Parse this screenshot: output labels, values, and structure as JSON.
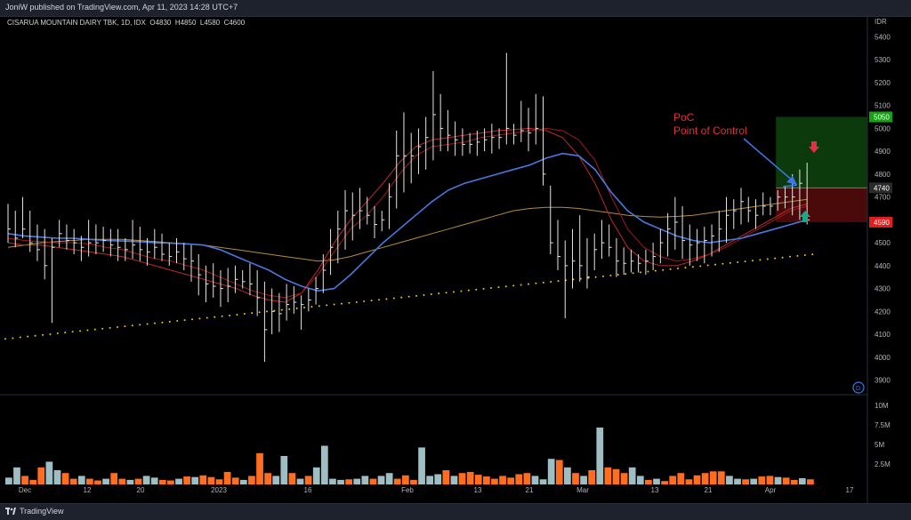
{
  "header": {
    "published": "JoniW published on TradingView.com, Apr 11, 2023 14:28 UTC+7"
  },
  "legend": {
    "symbol": "CISARUA MOUNTAIN DAIRY TBK, 1D, IDX",
    "o_label": "O",
    "o": "4830",
    "h_label": "H",
    "h": "4850",
    "l_label": "L",
    "l": "4580",
    "c_label": "C",
    "c": "4600"
  },
  "footer": {
    "brand": "TradingView"
  },
  "annotation": {
    "line1": "PoC",
    "line2": "Point of Control"
  },
  "colors": {
    "background": "#000000",
    "candle": "#e6e6e6",
    "ma_blue": "#4a78e0",
    "ma_red": "#9e1a1a",
    "ma_red2": "#c0282a",
    "ma_gold": "#b58c3b",
    "poc_dots": "#f0c419",
    "vol_up": "#9fbec4",
    "vol_down": "#ff6d1f",
    "target_zone": "#0c3a0c",
    "stop_zone": "#4a0a0a",
    "label_target": "#15a015",
    "label_entry": "#2b2b2b",
    "label_stop": "#e01e1e",
    "arrow_down": "#e0304a",
    "arrow_up": "#1aa88a",
    "annot_text": "#e0303a",
    "annot_arrow": "#3a78e8"
  },
  "chart_data": {
    "type": "ohlc",
    "currency": "IDR",
    "ylim": [
      3840,
      5460
    ],
    "y_ticks": [
      "5400",
      "5300",
      "5200",
      "5100",
      "5000",
      "4900",
      "4800",
      "4700",
      "4600",
      "4500",
      "4400",
      "4300",
      "4200",
      "4100",
      "4000",
      "3900"
    ],
    "x_ticks": [
      "Dec",
      "12",
      "20",
      "2023",
      "16",
      "Feb",
      "13",
      "21",
      "Mar",
      "13",
      "21",
      "Apr",
      "17"
    ],
    "price_labels": {
      "target": "5050",
      "entry": "4740",
      "stop": "4590"
    },
    "volume_ticks": [
      "10M",
      "7.5M",
      "5M",
      "2.5M"
    ],
    "bars": [
      {
        "h": 4670,
        "l": 4500,
        "c": 4560
      },
      {
        "h": 4640,
        "l": 4480,
        "c": 4520
      },
      {
        "h": 4700,
        "l": 4520,
        "c": 4560
      },
      {
        "h": 4640,
        "l": 4460,
        "c": 4500
      },
      {
        "h": 4580,
        "l": 4420,
        "c": 4470
      },
      {
        "h": 4560,
        "l": 4340,
        "c": 4400
      },
      {
        "h": 4520,
        "l": 4150,
        "c": 4480
      },
      {
        "h": 4600,
        "l": 4480,
        "c": 4540
      },
      {
        "h": 4580,
        "l": 4470,
        "c": 4510
      },
      {
        "h": 4560,
        "l": 4450,
        "c": 4500
      },
      {
        "h": 4530,
        "l": 4420,
        "c": 4480
      },
      {
        "h": 4600,
        "l": 4440,
        "c": 4500
      },
      {
        "h": 4580,
        "l": 4450,
        "c": 4500
      },
      {
        "h": 4570,
        "l": 4460,
        "c": 4510
      },
      {
        "h": 4560,
        "l": 4440,
        "c": 4490
      },
      {
        "h": 4560,
        "l": 4420,
        "c": 4480
      },
      {
        "h": 4520,
        "l": 4420,
        "c": 4470
      },
      {
        "h": 4600,
        "l": 4430,
        "c": 4490
      },
      {
        "h": 4570,
        "l": 4420,
        "c": 4470
      },
      {
        "h": 4520,
        "l": 4400,
        "c": 4460
      },
      {
        "h": 4560,
        "l": 4430,
        "c": 4480
      },
      {
        "h": 4540,
        "l": 4420,
        "c": 4450
      },
      {
        "h": 4500,
        "l": 4400,
        "c": 4440
      },
      {
        "h": 4520,
        "l": 4410,
        "c": 4460
      },
      {
        "h": 4500,
        "l": 4380,
        "c": 4430
      },
      {
        "h": 4490,
        "l": 4330,
        "c": 4420
      },
      {
        "h": 4450,
        "l": 4270,
        "c": 4360
      },
      {
        "h": 4400,
        "l": 4240,
        "c": 4320
      },
      {
        "h": 4410,
        "l": 4260,
        "c": 4310
      },
      {
        "h": 4380,
        "l": 4220,
        "c": 4300
      },
      {
        "h": 4390,
        "l": 4240,
        "c": 4310
      },
      {
        "h": 4400,
        "l": 4280,
        "c": 4340
      },
      {
        "h": 4380,
        "l": 4300,
        "c": 4330
      },
      {
        "h": 4410,
        "l": 4270,
        "c": 4320
      },
      {
        "h": 4380,
        "l": 4180,
        "c": 4260
      },
      {
        "h": 4330,
        "l": 3980,
        "c": 4120
      },
      {
        "h": 4300,
        "l": 4100,
        "c": 4200
      },
      {
        "h": 4280,
        "l": 4110,
        "c": 4190
      },
      {
        "h": 4320,
        "l": 4160,
        "c": 4230
      },
      {
        "h": 4310,
        "l": 4190,
        "c": 4240
      },
      {
        "h": 4270,
        "l": 4120,
        "c": 4230
      },
      {
        "h": 4300,
        "l": 4200,
        "c": 4250
      },
      {
        "h": 4350,
        "l": 4230,
        "c": 4300
      },
      {
        "h": 4450,
        "l": 4280,
        "c": 4380
      },
      {
        "h": 4560,
        "l": 4360,
        "c": 4480
      },
      {
        "h": 4640,
        "l": 4410,
        "c": 4560
      },
      {
        "h": 4730,
        "l": 4470,
        "c": 4640
      },
      {
        "h": 4720,
        "l": 4510,
        "c": 4620
      },
      {
        "h": 4740,
        "l": 4560,
        "c": 4640
      },
      {
        "h": 4700,
        "l": 4580,
        "c": 4620
      },
      {
        "h": 4660,
        "l": 4520,
        "c": 4580
      },
      {
        "h": 4640,
        "l": 4550,
        "c": 4600
      },
      {
        "h": 4760,
        "l": 4560,
        "c": 4700
      },
      {
        "h": 4990,
        "l": 4650,
        "c": 4880
      },
      {
        "h": 5070,
        "l": 4720,
        "c": 4880
      },
      {
        "h": 4980,
        "l": 4760,
        "c": 4880
      },
      {
        "h": 5000,
        "l": 4800,
        "c": 4920
      },
      {
        "h": 5050,
        "l": 4820,
        "c": 4960
      },
      {
        "h": 5250,
        "l": 4860,
        "c": 5060
      },
      {
        "h": 5150,
        "l": 4900,
        "c": 5000
      },
      {
        "h": 5080,
        "l": 4900,
        "c": 4970
      },
      {
        "h": 5030,
        "l": 4880,
        "c": 4950
      },
      {
        "h": 5000,
        "l": 4880,
        "c": 4930
      },
      {
        "h": 4980,
        "l": 4890,
        "c": 4930
      },
      {
        "h": 4990,
        "l": 4880,
        "c": 4940
      },
      {
        "h": 5000,
        "l": 4900,
        "c": 4950
      },
      {
        "h": 5020,
        "l": 4890,
        "c": 4960
      },
      {
        "h": 5000,
        "l": 4910,
        "c": 4960
      },
      {
        "h": 5330,
        "l": 4930,
        "c": 5000
      },
      {
        "h": 5020,
        "l": 4930,
        "c": 4970
      },
      {
        "h": 5120,
        "l": 4940,
        "c": 4990
      },
      {
        "h": 5090,
        "l": 4900,
        "c": 4980
      },
      {
        "h": 5150,
        "l": 4930,
        "c": 5000
      },
      {
        "h": 5140,
        "l": 4750,
        "c": 4800
      },
      {
        "h": 4750,
        "l": 4450,
        "c": 4500
      },
      {
        "h": 4600,
        "l": 4380,
        "c": 4440
      },
      {
        "h": 4510,
        "l": 4170,
        "c": 4400
      },
      {
        "h": 4560,
        "l": 4300,
        "c": 4420
      },
      {
        "h": 4620,
        "l": 4330,
        "c": 4400
      },
      {
        "h": 4520,
        "l": 4300,
        "c": 4350
      },
      {
        "h": 4540,
        "l": 4380,
        "c": 4470
      },
      {
        "h": 4600,
        "l": 4430,
        "c": 4500
      },
      {
        "h": 4580,
        "l": 4440,
        "c": 4480
      },
      {
        "h": 4520,
        "l": 4350,
        "c": 4420
      },
      {
        "h": 4480,
        "l": 4360,
        "c": 4410
      },
      {
        "h": 4470,
        "l": 4370,
        "c": 4420
      },
      {
        "h": 4450,
        "l": 4370,
        "c": 4410
      },
      {
        "h": 4470,
        "l": 4360,
        "c": 4420
      },
      {
        "h": 4500,
        "l": 4380,
        "c": 4440
      },
      {
        "h": 4560,
        "l": 4410,
        "c": 4500
      },
      {
        "h": 4630,
        "l": 4440,
        "c": 4560
      },
      {
        "h": 4700,
        "l": 4470,
        "c": 4590
      },
      {
        "h": 4660,
        "l": 4430,
        "c": 4510
      },
      {
        "h": 4580,
        "l": 4400,
        "c": 4490
      },
      {
        "h": 4560,
        "l": 4420,
        "c": 4500
      },
      {
        "h": 4570,
        "l": 4410,
        "c": 4510
      },
      {
        "h": 4580,
        "l": 4440,
        "c": 4530
      },
      {
        "h": 4640,
        "l": 4460,
        "c": 4560
      },
      {
        "h": 4700,
        "l": 4500,
        "c": 4620
      },
      {
        "h": 4690,
        "l": 4560,
        "c": 4640
      },
      {
        "h": 4740,
        "l": 4580,
        "c": 4680
      },
      {
        "h": 4700,
        "l": 4590,
        "c": 4640
      },
      {
        "h": 4690,
        "l": 4560,
        "c": 4620
      },
      {
        "h": 4720,
        "l": 4620,
        "c": 4660
      },
      {
        "h": 4700,
        "l": 4620,
        "c": 4660
      },
      {
        "h": 4730,
        "l": 4640,
        "c": 4700
      },
      {
        "h": 4750,
        "l": 4650,
        "c": 4700
      },
      {
        "h": 4800,
        "l": 4620,
        "c": 4700
      },
      {
        "h": 4820,
        "l": 4600,
        "c": 4760
      },
      {
        "h": 4850,
        "l": 4580,
        "c": 4600
      }
    ],
    "ma_blue": [
      4540,
      4530,
      4525,
      4520,
      4520,
      4515,
      4510,
      4508,
      4505,
      4500,
      4498,
      4495,
      4490,
      4470,
      4440,
      4410,
      4380,
      4340,
      4310,
      4290,
      4300,
      4360,
      4430,
      4500,
      4560,
      4620,
      4680,
      4730,
      4760,
      4780,
      4800,
      4820,
      4840,
      4870,
      4890,
      4880,
      4820,
      4720,
      4640,
      4590,
      4560,
      4530,
      4510,
      4500,
      4510,
      4520,
      4540,
      4560,
      4580,
      4600
    ],
    "ma_red": [
      4520,
      4510,
      4505,
      4500,
      4500,
      4495,
      4480,
      4470,
      4450,
      4430,
      4420,
      4400,
      4380,
      4350,
      4320,
      4290,
      4270,
      4260,
      4280,
      4360,
      4460,
      4560,
      4620,
      4700,
      4800,
      4880,
      4920,
      4930,
      4940,
      4960,
      4970,
      4980,
      4990,
      5000,
      4990,
      4950,
      4860,
      4700,
      4560,
      4480,
      4440,
      4420,
      4430,
      4450,
      4480,
      4520,
      4560,
      4600,
      4640,
      4660
    ],
    "ma_red2": [
      4500,
      4490,
      4490,
      4480,
      4470,
      4460,
      4450,
      4440,
      4420,
      4400,
      4380,
      4360,
      4340,
      4320,
      4300,
      4270,
      4250,
      4240,
      4280,
      4380,
      4500,
      4600,
      4680,
      4760,
      4850,
      4920,
      4950,
      4960,
      4970,
      4980,
      4990,
      4995,
      5000,
      4990,
      4960,
      4880,
      4760,
      4600,
      4480,
      4420,
      4400,
      4400,
      4420,
      4450,
      4490,
      4530,
      4570,
      4610,
      4650,
      4670
    ],
    "ma_gold": [
      4480,
      4490,
      4500,
      4505,
      4510,
      4515,
      4515,
      4515,
      4510,
      4505,
      4500,
      4495,
      4490,
      4480,
      4470,
      4460,
      4450,
      4440,
      4430,
      4420,
      4425,
      4440,
      4460,
      4480,
      4500,
      4520,
      4540,
      4560,
      4580,
      4600,
      4620,
      4640,
      4650,
      4655,
      4655,
      4650,
      4640,
      4630,
      4620,
      4615,
      4612,
      4615,
      4620,
      4630,
      4640,
      4650,
      4660,
      4670,
      4680,
      4690
    ],
    "poc_line": {
      "start": 4080,
      "end": 4450
    },
    "volume": [
      {
        "v": 1.2,
        "up": true
      },
      {
        "v": 3.0,
        "up": true
      },
      {
        "v": 1.5,
        "up": false
      },
      {
        "v": 0.8,
        "up": false
      },
      {
        "v": 3.0,
        "up": false
      },
      {
        "v": 4.0,
        "up": true
      },
      {
        "v": 2.5,
        "up": true
      },
      {
        "v": 2.0,
        "up": false
      },
      {
        "v": 1.0,
        "up": false
      },
      {
        "v": 1.5,
        "up": true
      },
      {
        "v": 1.0,
        "up": false
      },
      {
        "v": 0.7,
        "up": false
      },
      {
        "v": 1.0,
        "up": true
      },
      {
        "v": 2.0,
        "up": false
      },
      {
        "v": 1.0,
        "up": false
      },
      {
        "v": 0.8,
        "up": true
      },
      {
        "v": 1.0,
        "up": false
      },
      {
        "v": 1.5,
        "up": true
      },
      {
        "v": 1.2,
        "up": true
      },
      {
        "v": 0.8,
        "up": false
      },
      {
        "v": 0.7,
        "up": false
      },
      {
        "v": 1.0,
        "up": true
      },
      {
        "v": 1.4,
        "up": false
      },
      {
        "v": 1.3,
        "up": true
      },
      {
        "v": 1.6,
        "up": false
      },
      {
        "v": 1.3,
        "up": false
      },
      {
        "v": 0.9,
        "up": false
      },
      {
        "v": 2.2,
        "up": false
      },
      {
        "v": 1.2,
        "up": false
      },
      {
        "v": 0.8,
        "up": true
      },
      {
        "v": 1.5,
        "up": false
      },
      {
        "v": 5.5,
        "up": false
      },
      {
        "v": 2.0,
        "up": false
      },
      {
        "v": 1.5,
        "up": true
      },
      {
        "v": 5.0,
        "up": true
      },
      {
        "v": 2.0,
        "up": false
      },
      {
        "v": 1.0,
        "up": true
      },
      {
        "v": 1.5,
        "up": false
      },
      {
        "v": 3.0,
        "up": true
      },
      {
        "v": 6.8,
        "up": true
      },
      {
        "v": 1.0,
        "up": true
      },
      {
        "v": 0.8,
        "up": true
      },
      {
        "v": 0.9,
        "up": false
      },
      {
        "v": 1.0,
        "up": true
      },
      {
        "v": 1.5,
        "up": true
      },
      {
        "v": 1.0,
        "up": false
      },
      {
        "v": 1.5,
        "up": true
      },
      {
        "v": 2.0,
        "up": true
      },
      {
        "v": 1.0,
        "up": false
      },
      {
        "v": 1.6,
        "up": false
      },
      {
        "v": 0.8,
        "up": false
      },
      {
        "v": 6.5,
        "up": true
      },
      {
        "v": 1.5,
        "up": true
      },
      {
        "v": 1.8,
        "up": true
      },
      {
        "v": 2.5,
        "up": false
      },
      {
        "v": 1.5,
        "up": true
      },
      {
        "v": 2.0,
        "up": false
      },
      {
        "v": 2.2,
        "up": false
      },
      {
        "v": 1.7,
        "up": false
      },
      {
        "v": 1.4,
        "up": false
      },
      {
        "v": 1.0,
        "up": false
      },
      {
        "v": 1.5,
        "up": false
      },
      {
        "v": 1.2,
        "up": false
      },
      {
        "v": 1.8,
        "up": false
      },
      {
        "v": 2.0,
        "up": false
      },
      {
        "v": 1.5,
        "up": true
      },
      {
        "v": 0.9,
        "up": true
      },
      {
        "v": 4.5,
        "up": true
      },
      {
        "v": 4.3,
        "up": false
      },
      {
        "v": 3.0,
        "up": true
      },
      {
        "v": 2.0,
        "up": false
      },
      {
        "v": 1.5,
        "up": true
      },
      {
        "v": 2.5,
        "up": false
      },
      {
        "v": 10.0,
        "up": true
      },
      {
        "v": 3.0,
        "up": false
      },
      {
        "v": 2.7,
        "up": false
      },
      {
        "v": 2.0,
        "up": false
      },
      {
        "v": 3.0,
        "up": true
      },
      {
        "v": 1.5,
        "up": true
      },
      {
        "v": 0.8,
        "up": false
      },
      {
        "v": 1.0,
        "up": true
      },
      {
        "v": 0.6,
        "up": false
      },
      {
        "v": 1.5,
        "up": false
      },
      {
        "v": 2.0,
        "up": false
      },
      {
        "v": 0.9,
        "up": false
      },
      {
        "v": 1.6,
        "up": false
      },
      {
        "v": 2.0,
        "up": false
      },
      {
        "v": 2.3,
        "up": false
      },
      {
        "v": 2.3,
        "up": false
      },
      {
        "v": 1.5,
        "up": true
      },
      {
        "v": 1.0,
        "up": true
      },
      {
        "v": 0.9,
        "up": false
      },
      {
        "v": 1.0,
        "up": true
      },
      {
        "v": 1.4,
        "up": false
      },
      {
        "v": 1.5,
        "up": false
      },
      {
        "v": 1.3,
        "up": true
      },
      {
        "v": 1.2,
        "up": false
      },
      {
        "v": 0.8,
        "up": false
      },
      {
        "v": 1.1,
        "up": true
      },
      {
        "v": 0.9,
        "up": false
      }
    ]
  }
}
